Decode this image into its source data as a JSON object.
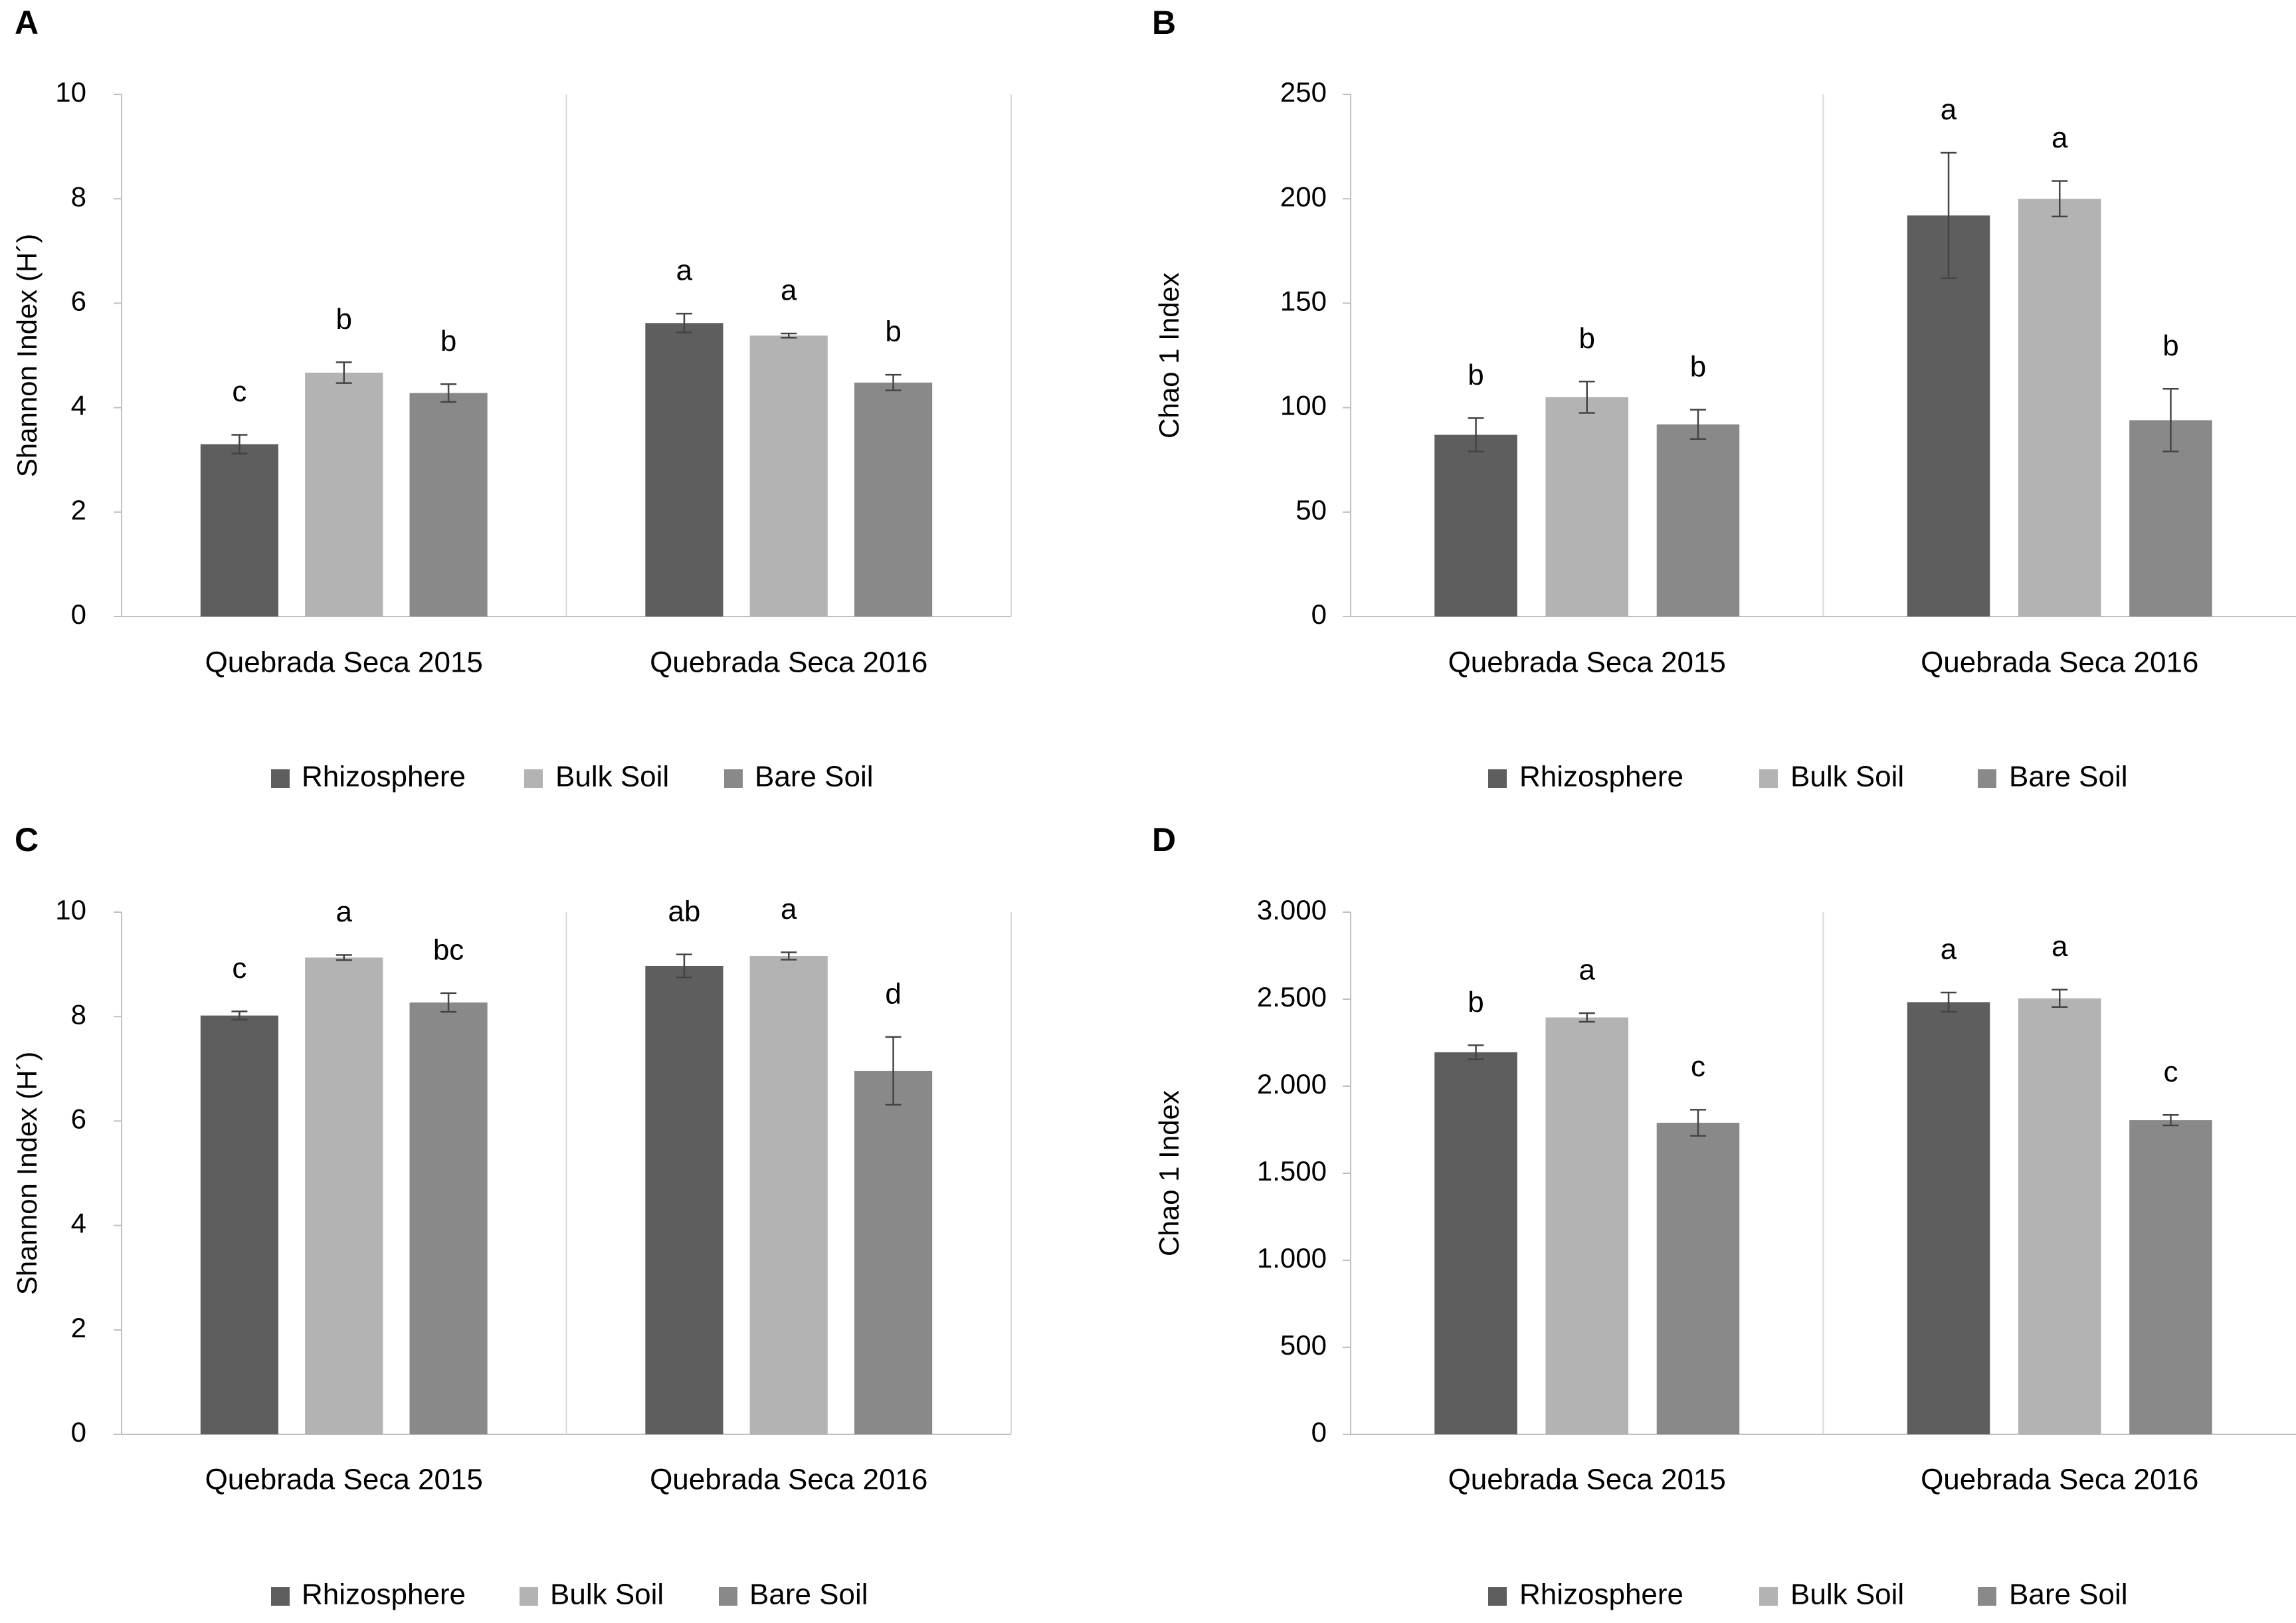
{
  "figure": {
    "categories": [
      "Quebrada Seca 2015",
      "Quebrada Seca 2016"
    ],
    "series_names": [
      "Rhizosphere",
      "Bulk Soil",
      "Bare Soil"
    ],
    "series_colors": [
      "#5e5e5e",
      "#b3b3b3",
      "#898989"
    ]
  },
  "chart_data": [
    {
      "type": "bar",
      "panel": "A",
      "ylabel": "Shannon Index (H´)",
      "ylim": [
        0,
        10
      ],
      "yticks": [
        0,
        2,
        4,
        6,
        8,
        10
      ],
      "ytick_labels": [
        "0",
        "2",
        "4",
        "6",
        "8",
        "10"
      ],
      "categories": [
        "Quebrada Seca 2015",
        "Quebrada Seca 2016"
      ],
      "series": [
        {
          "name": "Rhizosphere",
          "values": [
            3.3,
            5.62
          ],
          "errors": [
            0.18,
            0.18
          ],
          "letters": [
            "c",
            "a"
          ]
        },
        {
          "name": "Bulk Soil",
          "values": [
            4.67,
            5.38
          ],
          "errors": [
            0.2,
            0.04
          ],
          "letters": [
            "b",
            "a"
          ]
        },
        {
          "name": "Bare Soil",
          "values": [
            4.28,
            4.48
          ],
          "errors": [
            0.17,
            0.15
          ],
          "letters": [
            "b",
            "b"
          ]
        }
      ],
      "legend": [
        "Rhizosphere",
        "Bulk Soil",
        "Bare Soil"
      ]
    },
    {
      "type": "bar",
      "panel": "B",
      "ylabel": "Chao 1 Index",
      "ylim": [
        0,
        250
      ],
      "yticks": [
        0,
        50,
        100,
        150,
        200,
        250
      ],
      "ytick_labels": [
        "0",
        "50",
        "100",
        "150",
        "200",
        "250"
      ],
      "categories": [
        "Quebrada Seca 2015",
        "Quebrada Seca 2016"
      ],
      "series": [
        {
          "name": "Rhizosphere",
          "values": [
            87,
            192
          ],
          "errors": [
            8,
            30
          ],
          "letters": [
            "b",
            "a"
          ]
        },
        {
          "name": "Bulk Soil",
          "values": [
            105,
            200
          ],
          "errors": [
            7.5,
            8.5
          ],
          "letters": [
            "b",
            "a"
          ]
        },
        {
          "name": "Bare Soil",
          "values": [
            92,
            94
          ],
          "errors": [
            7,
            15
          ],
          "letters": [
            "b",
            "b"
          ]
        }
      ],
      "legend": [
        "Rhizosphere",
        "Bulk Soil",
        "Bare Soil"
      ]
    },
    {
      "type": "bar",
      "panel": "C",
      "ylabel": "Shannon Index (H´)",
      "ylim": [
        0,
        10
      ],
      "yticks": [
        0,
        2,
        4,
        6,
        8,
        10
      ],
      "ytick_labels": [
        "0",
        "2",
        "4",
        "6",
        "8",
        "10"
      ],
      "categories": [
        "Quebrada Seca 2015",
        "Quebrada Seca 2016"
      ],
      "series": [
        {
          "name": "Rhizosphere",
          "values": [
            8.02,
            8.97
          ],
          "errors": [
            0.08,
            0.22
          ],
          "letters": [
            "c",
            "ab"
          ]
        },
        {
          "name": "Bulk Soil",
          "values": [
            9.13,
            9.16
          ],
          "errors": [
            0.05,
            0.07
          ],
          "letters": [
            "a",
            "a"
          ]
        },
        {
          "name": "Bare Soil",
          "values": [
            8.27,
            6.96
          ],
          "errors": [
            0.18,
            0.65
          ],
          "letters": [
            "bc",
            "d"
          ]
        }
      ],
      "legend": [
        "Rhizosphere",
        "Bulk Soil",
        "Bare Soil"
      ]
    },
    {
      "type": "bar",
      "panel": "D",
      "ylabel": "Chao 1 Index",
      "ylim": [
        0,
        3000
      ],
      "yticks": [
        0,
        500,
        1000,
        1500,
        2000,
        2500,
        3000
      ],
      "ytick_labels": [
        "0",
        "500",
        "1.000",
        "1.500",
        "2.000",
        "2.500",
        "3.000"
      ],
      "categories": [
        "Quebrada Seca 2015",
        "Quebrada Seca 2016"
      ],
      "series": [
        {
          "name": "Rhizosphere",
          "values": [
            2195,
            2483
          ],
          "errors": [
            40,
            55
          ],
          "letters": [
            "b",
            "a"
          ]
        },
        {
          "name": "Bulk Soil",
          "values": [
            2395,
            2505
          ],
          "errors": [
            25,
            50
          ],
          "letters": [
            "a",
            "a"
          ]
        },
        {
          "name": "Bare Soil",
          "values": [
            1790,
            1805
          ],
          "errors": [
            75,
            30
          ],
          "letters": [
            "c",
            "c"
          ]
        }
      ],
      "legend": [
        "Rhizosphere",
        "Bulk Soil",
        "Bare Soil"
      ]
    }
  ]
}
